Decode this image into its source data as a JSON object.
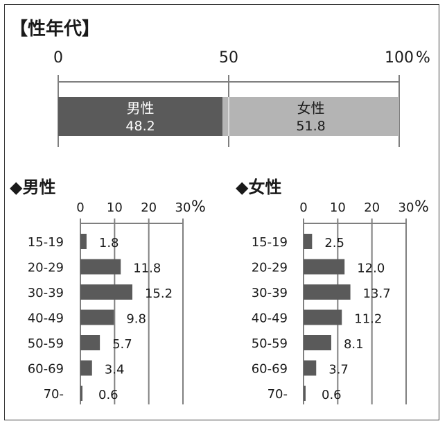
{
  "title": "【性年代】",
  "colors": {
    "male": "#5a5a5a",
    "female": "#b4b4b4",
    "axis": "#7f7f7f",
    "text": "#1a1a1a"
  },
  "chart_data": [
    {
      "type": "bar",
      "orientation": "horizontal-stacked",
      "title": "【性年代】",
      "xlim": [
        0,
        100
      ],
      "ticks": [
        "0",
        "50",
        "100"
      ],
      "unit": "%",
      "series": [
        {
          "name": "男性",
          "value": 48.2,
          "label": "48.2"
        },
        {
          "name": "女性",
          "value": 51.8,
          "label": "51.8"
        }
      ]
    },
    {
      "type": "bar",
      "orientation": "horizontal",
      "title": "◆男性",
      "xlim": [
        0,
        30
      ],
      "ticks": [
        "0",
        "10",
        "20",
        "30"
      ],
      "unit": "%",
      "categories": [
        "15-19",
        "20-29",
        "30-39",
        "40-49",
        "50-59",
        "60-69",
        "70-"
      ],
      "values": [
        1.8,
        11.8,
        15.2,
        9.8,
        5.7,
        3.4,
        0.6
      ],
      "labels": [
        "1.8",
        "11.8",
        "15.2",
        "9.8",
        "5.7",
        "3.4",
        "0.6"
      ]
    },
    {
      "type": "bar",
      "orientation": "horizontal",
      "title": "◆女性",
      "xlim": [
        0,
        30
      ],
      "ticks": [
        "0",
        "10",
        "20",
        "30"
      ],
      "unit": "%",
      "categories": [
        "15-19",
        "20-29",
        "30-39",
        "40-49",
        "50-59",
        "60-69",
        "70-"
      ],
      "values": [
        2.5,
        12.0,
        13.7,
        11.2,
        8.1,
        3.7,
        0.6
      ],
      "labels": [
        "2.5",
        "12.0",
        "13.7",
        "11.2",
        "8.1",
        "3.7",
        "0.6"
      ]
    }
  ]
}
